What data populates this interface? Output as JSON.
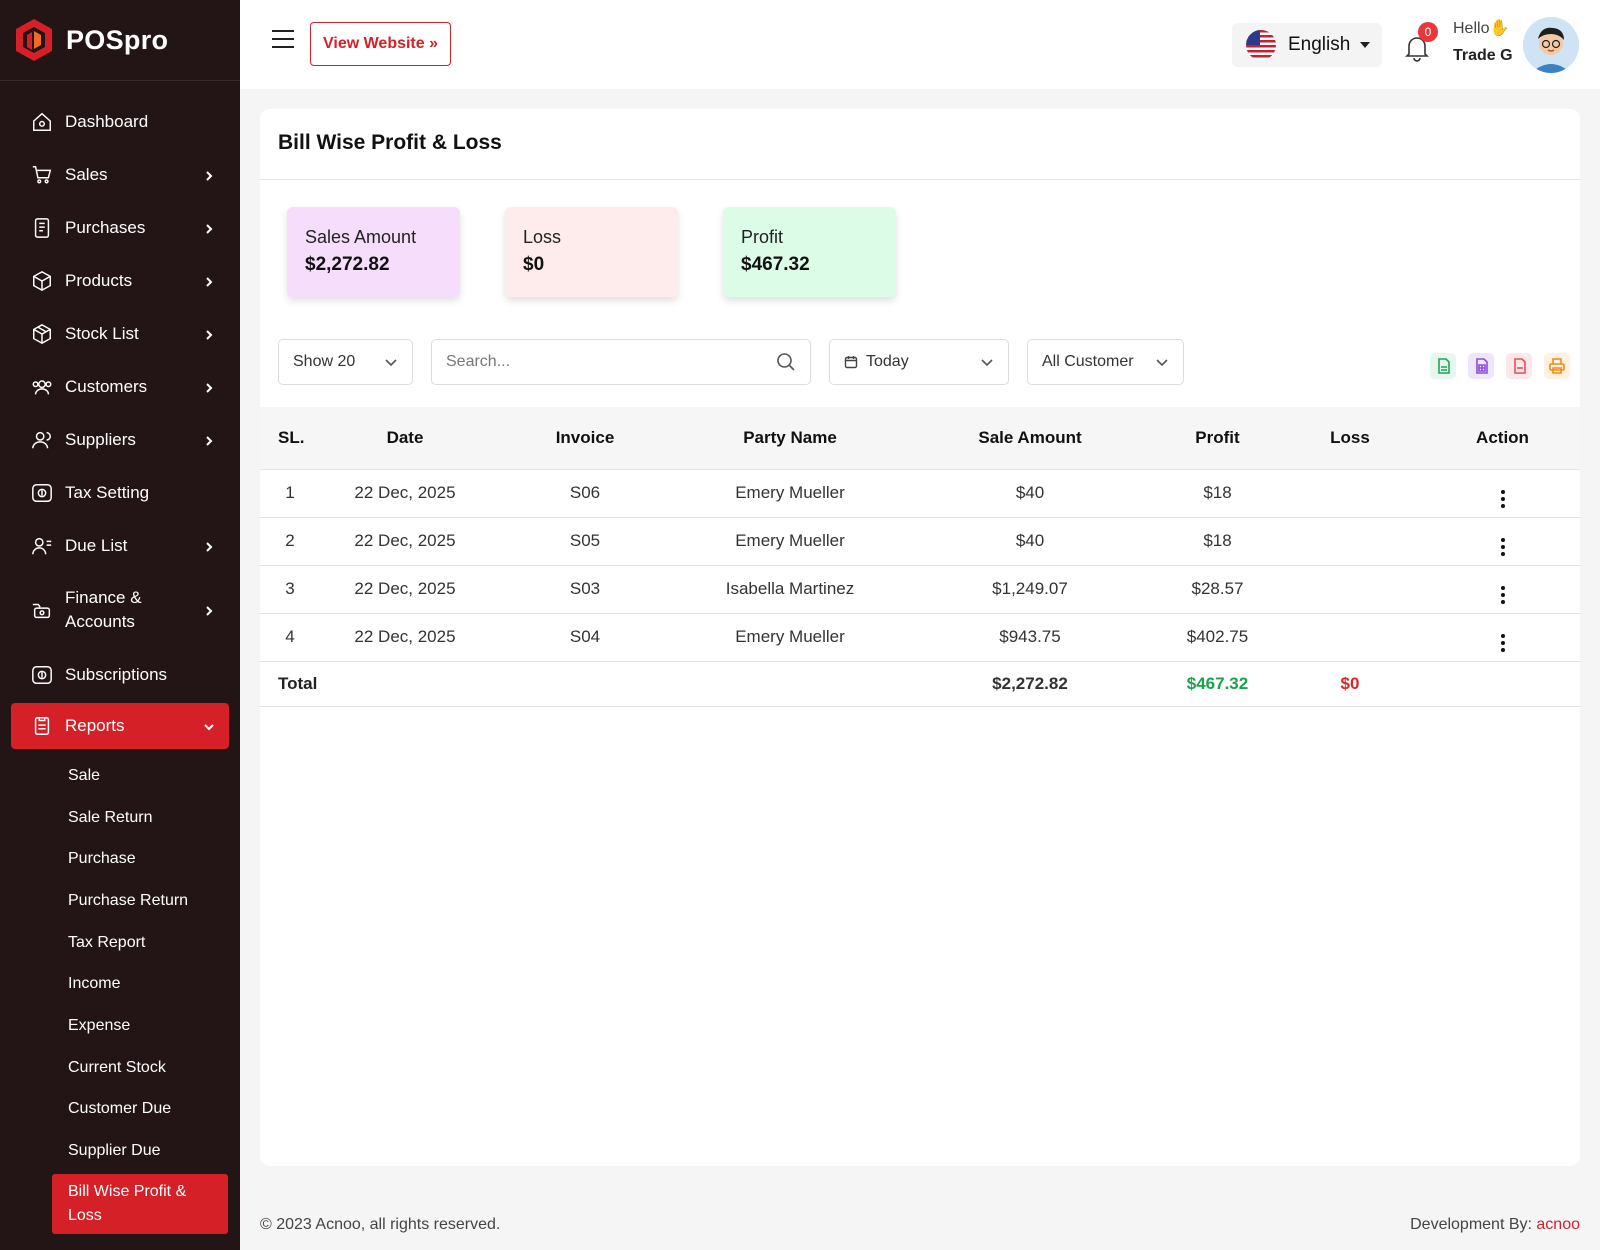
{
  "brand": {
    "name": "POSpro"
  },
  "sidebar": {
    "items": [
      {
        "label": "Dashboard",
        "icon": "home-icon",
        "chevron": false
      },
      {
        "label": "Sales",
        "icon": "cart-icon",
        "chevron": true
      },
      {
        "label": "Purchases",
        "icon": "receipt-icon",
        "chevron": true
      },
      {
        "label": "Products",
        "icon": "box-icon",
        "chevron": true
      },
      {
        "label": "Stock List",
        "icon": "stock-icon",
        "chevron": true
      },
      {
        "label": "Customers",
        "icon": "users-icon",
        "chevron": true
      },
      {
        "label": "Suppliers",
        "icon": "suppliers-icon",
        "chevron": true
      },
      {
        "label": "Tax Setting",
        "icon": "tax-icon",
        "chevron": false
      },
      {
        "label": "Due List",
        "icon": "due-icon",
        "chevron": true
      },
      {
        "label": "Finance & Accounts",
        "icon": "finance-icon",
        "chevron": true
      },
      {
        "label": "Subscriptions",
        "icon": "subscription-icon",
        "chevron": false
      },
      {
        "label": "Reports",
        "icon": "report-icon",
        "chevron": true,
        "active": true
      }
    ],
    "report_sub": [
      "Sale",
      "Sale Return",
      "Purchase",
      "Purchase Return",
      "Tax Report",
      "Income",
      "Expense",
      "Current Stock",
      "Customer Due",
      "Supplier Due",
      "Bill Wise Profit & Loss"
    ]
  },
  "header": {
    "view_website": "View Website »",
    "language": "English",
    "notification_count": "0",
    "greeting": "Hello",
    "user_name": "Trade G"
  },
  "page": {
    "title": "Bill Wise Profit & Loss",
    "stats": [
      {
        "title": "Sales Amount",
        "value": "$2,272.82",
        "bg": "#f6ddfb"
      },
      {
        "title": "Loss",
        "value": "$0",
        "bg": "#fdeceb"
      },
      {
        "title": "Profit",
        "value": "$467.32",
        "bg": "#dcfce7"
      }
    ],
    "filters": {
      "show": "Show 20",
      "search_placeholder": "Search...",
      "date": "Today",
      "customer": "All Customer"
    },
    "exports": [
      {
        "name": "csv-export-icon",
        "color": "#22a35a",
        "bg": "#e6f7ed"
      },
      {
        "name": "excel-export-icon",
        "color": "#8b4fd8",
        "bg": "#f0e6fb"
      },
      {
        "name": "pdf-export-icon",
        "color": "#e4505a",
        "bg": "#fde8e9"
      },
      {
        "name": "print-icon",
        "color": "#f08c1a",
        "bg": "#fff0df"
      }
    ],
    "table": {
      "headers": [
        "SL.",
        "Date",
        "Invoice",
        "Party Name",
        "Sale Amount",
        "Profit",
        "Loss",
        "Action"
      ],
      "rows": [
        {
          "sl": "1",
          "date": "22 Dec, 2025",
          "invoice": "S06",
          "party": "Emery Mueller",
          "sale": "$40",
          "profit": "$18",
          "loss": ""
        },
        {
          "sl": "2",
          "date": "22 Dec, 2025",
          "invoice": "S05",
          "party": "Emery Mueller",
          "sale": "$40",
          "profit": "$18",
          "loss": ""
        },
        {
          "sl": "3",
          "date": "22 Dec, 2025",
          "invoice": "S03",
          "party": "Isabella Martinez",
          "sale": "$1,249.07",
          "profit": "$28.57",
          "loss": ""
        },
        {
          "sl": "4",
          "date": "22 Dec, 2025",
          "invoice": "S04",
          "party": "Emery Mueller",
          "sale": "$943.75",
          "profit": "$402.75",
          "loss": ""
        }
      ],
      "total": {
        "label": "Total",
        "sale": "$2,272.82",
        "profit": "$467.32",
        "loss": "$0",
        "profit_color": "#16a34a",
        "loss_color": "#dc2626"
      }
    }
  },
  "footer": {
    "copyright": "© 2023 Acnoo, all rights reserved.",
    "dev_label": "Development By:",
    "dev_link": "acnoo"
  },
  "colors": {
    "accent": "#d42026",
    "sidebar_bg": "#231516"
  }
}
